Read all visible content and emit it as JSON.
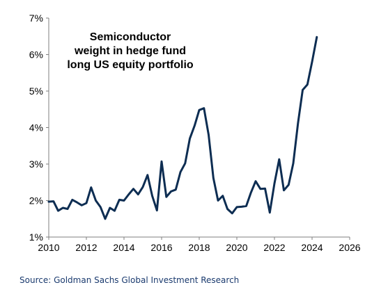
{
  "chart_data": {
    "type": "line",
    "title_lines": [
      "Semiconductor",
      "weight in hedge fund",
      "long US equity portfolio"
    ],
    "xlabel": "",
    "ylabel": "",
    "xlim": [
      2010,
      2026
    ],
    "ylim": [
      1,
      7
    ],
    "x_ticks": [
      "2010",
      "2012",
      "2014",
      "2016",
      "2018",
      "2020",
      "2022",
      "2024",
      "2026"
    ],
    "y_ticks": [
      "1%",
      "2%",
      "3%",
      "4%",
      "5%",
      "6%",
      "7%"
    ],
    "grid": false,
    "legend": "none",
    "line_color": "#0d2d52",
    "series": [
      {
        "x": [
          2010.0,
          2010.25,
          2010.5,
          2010.75,
          2011.0,
          2011.25,
          2011.5,
          2011.75,
          2012.0,
          2012.25,
          2012.5,
          2012.75,
          2013.0,
          2013.25,
          2013.5,
          2013.75,
          2014.0,
          2014.25,
          2014.5,
          2014.75,
          2015.0,
          2015.25,
          2015.5,
          2015.75,
          2016.0,
          2016.25,
          2016.5,
          2016.75,
          2017.0,
          2017.25,
          2017.5,
          2017.75,
          2018.0,
          2018.25,
          2018.5,
          2018.75,
          2019.0,
          2019.25,
          2019.5,
          2019.75,
          2020.0,
          2020.25,
          2020.5,
          2020.75,
          2021.0,
          2021.25,
          2021.5,
          2021.75,
          2022.0,
          2022.25,
          2022.5,
          2022.75,
          2023.0,
          2023.25,
          2023.5,
          2023.75,
          2024.0,
          2024.25
        ],
        "y": [
          1.97,
          1.98,
          1.72,
          1.8,
          1.77,
          2.02,
          1.95,
          1.87,
          1.93,
          2.36,
          2.0,
          1.82,
          1.5,
          1.8,
          1.72,
          2.02,
          2.0,
          2.17,
          2.32,
          2.17,
          2.37,
          2.7,
          2.13,
          1.73,
          3.07,
          2.1,
          2.25,
          2.3,
          2.78,
          3.02,
          3.7,
          4.05,
          4.48,
          4.53,
          3.8,
          2.62,
          2.0,
          2.13,
          1.77,
          1.65,
          1.82,
          1.83,
          1.85,
          2.22,
          2.53,
          2.32,
          2.33,
          1.67,
          2.47,
          3.13,
          2.28,
          2.43,
          3.02,
          4.12,
          5.03,
          5.18,
          5.8,
          6.48
        ]
      }
    ]
  },
  "source": "Source: Goldman Sachs Global Investment Research"
}
